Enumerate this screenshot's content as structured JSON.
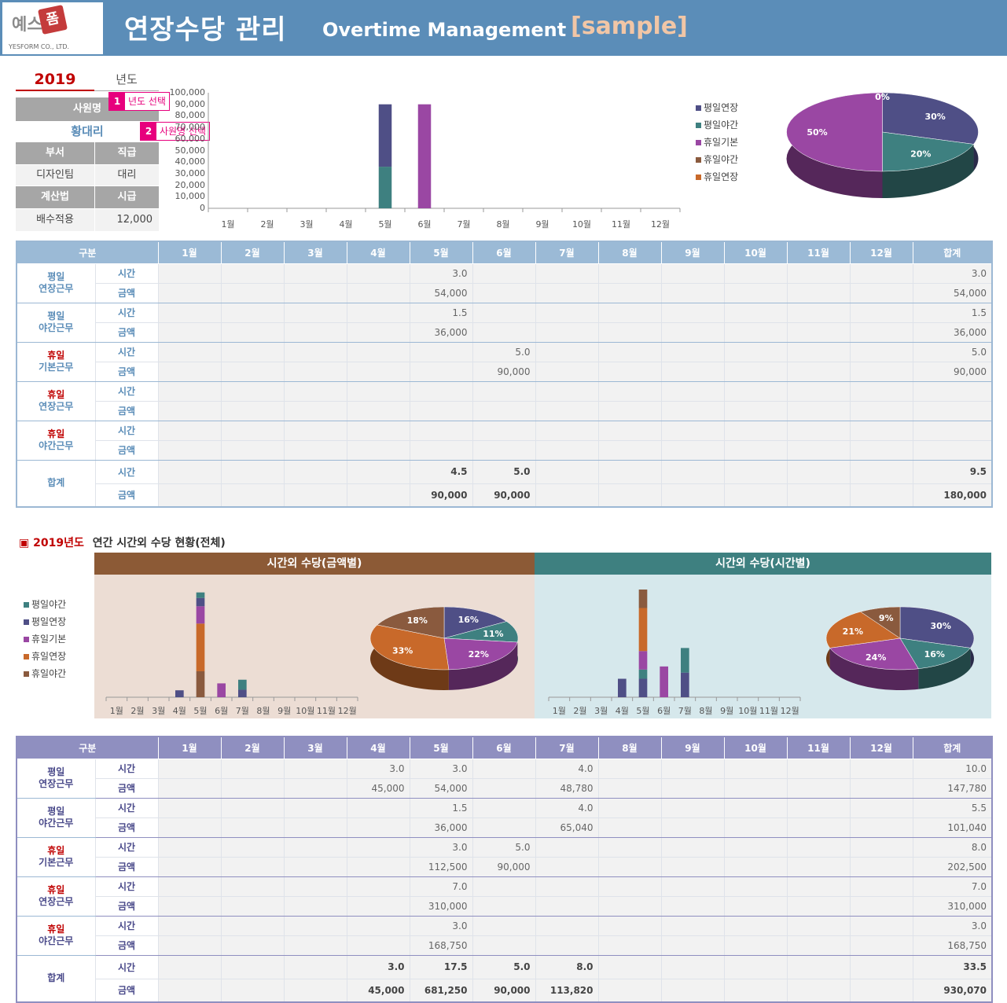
{
  "header": {
    "logo_text": "예스",
    "logo_badge": "폼",
    "logo_sub": "YESFORM CO., LTD.",
    "title_ko": "연장수당 관리",
    "title_en": "Overtime Management",
    "title_sample": "[sample]"
  },
  "info": {
    "year": "2019",
    "year_label": "년도",
    "name_label": "사원명",
    "name": "황대리",
    "dept_label": "부서",
    "position_label": "직급",
    "dept": "디자인팀",
    "position": "대리",
    "calc_label": "계산법",
    "wage_label": "시급",
    "calc": "배수적용",
    "wage": "12,000"
  },
  "tips": [
    {
      "num": "1",
      "text": "년도 선택"
    },
    {
      "num": "2",
      "text": "사원명 선택"
    }
  ],
  "months": [
    "1월",
    "2월",
    "3월",
    "4월",
    "5월",
    "6월",
    "7월",
    "8월",
    "9월",
    "10월",
    "11월",
    "12월"
  ],
  "table1": {
    "h_cat": "구분",
    "h_total": "합계",
    "time_label": "시간",
    "amount_label": "금액",
    "rows": [
      {
        "l1": "평일",
        "l2": "연장근무",
        "hol": false,
        "time": [
          "",
          "",
          "",
          "",
          "3.0",
          "",
          "",
          "",
          "",
          "",
          "",
          ""
        ],
        "time_total": "3.0",
        "amount": [
          "",
          "",
          "",
          "",
          "54,000",
          "",
          "",
          "",
          "",
          "",
          "",
          ""
        ],
        "amount_total": "54,000"
      },
      {
        "l1": "평일",
        "l2": "야간근무",
        "hol": false,
        "time": [
          "",
          "",
          "",
          "",
          "1.5",
          "",
          "",
          "",
          "",
          "",
          "",
          ""
        ],
        "time_total": "1.5",
        "amount": [
          "",
          "",
          "",
          "",
          "36,000",
          "",
          "",
          "",
          "",
          "",
          "",
          ""
        ],
        "amount_total": "36,000"
      },
      {
        "l1": "휴일",
        "l2": "기본근무",
        "hol": true,
        "time": [
          "",
          "",
          "",
          "",
          "",
          "5.0",
          "",
          "",
          "",
          "",
          "",
          ""
        ],
        "time_total": "5.0",
        "amount": [
          "",
          "",
          "",
          "",
          "",
          "90,000",
          "",
          "",
          "",
          "",
          "",
          ""
        ],
        "amount_total": "90,000"
      },
      {
        "l1": "휴일",
        "l2": "연장근무",
        "hol": true,
        "time": [
          "",
          "",
          "",
          "",
          "",
          "",
          "",
          "",
          "",
          "",
          "",
          ""
        ],
        "time_total": "",
        "amount": [
          "",
          "",
          "",
          "",
          "",
          "",
          "",
          "",
          "",
          "",
          "",
          ""
        ],
        "amount_total": ""
      },
      {
        "l1": "휴일",
        "l2": "야간근무",
        "hol": true,
        "time": [
          "",
          "",
          "",
          "",
          "",
          "",
          "",
          "",
          "",
          "",
          "",
          ""
        ],
        "time_total": "",
        "amount": [
          "",
          "",
          "",
          "",
          "",
          "",
          "",
          "",
          "",
          "",
          "",
          ""
        ],
        "amount_total": ""
      }
    ],
    "sum": {
      "label": "합계",
      "time": [
        "",
        "",
        "",
        "",
        "4.5",
        "5.0",
        "",
        "",
        "",
        "",
        "",
        ""
      ],
      "time_total": "9.5",
      "amount": [
        "",
        "",
        "",
        "",
        "90,000",
        "90,000",
        "",
        "",
        "",
        "",
        "",
        ""
      ],
      "amount_total": "180,000"
    }
  },
  "section2": {
    "marker": "▣",
    "title_year": "2019년도",
    "title": "연간 시간외 수당 현황(전체)",
    "panel1": "시간외 수당(금액별)",
    "panel2": "시간외 수당(시간별)"
  },
  "table2": {
    "h_cat": "구분",
    "h_total": "합계",
    "time_label": "시간",
    "amount_label": "금액",
    "rows": [
      {
        "l1": "평일",
        "l2": "연장근무",
        "hol": false,
        "time": [
          "",
          "",
          "",
          "3.0",
          "3.0",
          "",
          "4.0",
          "",
          "",
          "",
          "",
          ""
        ],
        "time_total": "10.0",
        "amount": [
          "",
          "",
          "",
          "45,000",
          "54,000",
          "",
          "48,780",
          "",
          "",
          "",
          "",
          ""
        ],
        "amount_total": "147,780"
      },
      {
        "l1": "평일",
        "l2": "야간근무",
        "hol": false,
        "time": [
          "",
          "",
          "",
          "",
          "1.5",
          "",
          "4.0",
          "",
          "",
          "",
          "",
          ""
        ],
        "time_total": "5.5",
        "amount": [
          "",
          "",
          "",
          "",
          "36,000",
          "",
          "65,040",
          "",
          "",
          "",
          "",
          ""
        ],
        "amount_total": "101,040"
      },
      {
        "l1": "휴일",
        "l2": "기본근무",
        "hol": true,
        "time": [
          "",
          "",
          "",
          "",
          "3.0",
          "5.0",
          "",
          "",
          "",
          "",
          "",
          ""
        ],
        "time_total": "8.0",
        "amount": [
          "",
          "",
          "",
          "",
          "112,500",
          "90,000",
          "",
          "",
          "",
          "",
          "",
          ""
        ],
        "amount_total": "202,500"
      },
      {
        "l1": "휴일",
        "l2": "연장근무",
        "hol": true,
        "time": [
          "",
          "",
          "",
          "",
          "7.0",
          "",
          "",
          "",
          "",
          "",
          "",
          ""
        ],
        "time_total": "7.0",
        "amount": [
          "",
          "",
          "",
          "",
          "310,000",
          "",
          "",
          "",
          "",
          "",
          "",
          ""
        ],
        "amount_total": "310,000"
      },
      {
        "l1": "휴일",
        "l2": "야간근무",
        "hol": true,
        "time": [
          "",
          "",
          "",
          "",
          "3.0",
          "",
          "",
          "",
          "",
          "",
          "",
          ""
        ],
        "time_total": "3.0",
        "amount": [
          "",
          "",
          "",
          "",
          "168,750",
          "",
          "",
          "",
          "",
          "",
          "",
          ""
        ],
        "amount_total": "168,750"
      }
    ],
    "sum": {
      "label": "합계",
      "time": [
        "",
        "",
        "",
        "3.0",
        "17.5",
        "5.0",
        "8.0",
        "",
        "",
        "",
        "",
        ""
      ],
      "time_total": "33.5",
      "amount": [
        "",
        "",
        "",
        "45,000",
        "681,250",
        "90,000",
        "113,820",
        "",
        "",
        "",
        "",
        ""
      ],
      "amount_total": "930,070"
    }
  },
  "colors": {
    "pw_ext": "#4f4f86",
    "pw_night": "#3e8080",
    "hol_base": "#9a47a3",
    "hol_night": "#8a5a3e",
    "hol_ext": "#c8692a"
  },
  "chart_data": [
    {
      "id": "top-bar",
      "type": "bar",
      "stacked": true,
      "title": "",
      "categories": [
        "1월",
        "2월",
        "3월",
        "4월",
        "5월",
        "6월",
        "7월",
        "8월",
        "9월",
        "10월",
        "11월",
        "12월"
      ],
      "ylim": [
        0,
        100000
      ],
      "yticks": [
        "0",
        "10,000",
        "20,000",
        "30,000",
        "40,000",
        "50,000",
        "60,000",
        "70,000",
        "80,000",
        "90,000",
        "100,000"
      ],
      "series": [
        {
          "name": "평일야간",
          "key": "pw_night",
          "values": [
            0,
            0,
            0,
            0,
            36000,
            0,
            0,
            0,
            0,
            0,
            0,
            0
          ]
        },
        {
          "name": "평일연장",
          "key": "pw_ext",
          "values": [
            0,
            0,
            0,
            0,
            54000,
            0,
            0,
            0,
            0,
            0,
            0,
            0
          ]
        },
        {
          "name": "휴일기본",
          "key": "hol_base",
          "values": [
            0,
            0,
            0,
            0,
            0,
            90000,
            0,
            0,
            0,
            0,
            0,
            0
          ]
        },
        {
          "name": "휴일야간",
          "key": "hol_night",
          "values": [
            0,
            0,
            0,
            0,
            0,
            0,
            0,
            0,
            0,
            0,
            0,
            0
          ]
        },
        {
          "name": "휴일연장",
          "key": "hol_ext",
          "values": [
            0,
            0,
            0,
            0,
            0,
            0,
            0,
            0,
            0,
            0,
            0,
            0
          ]
        }
      ],
      "legend": [
        {
          "name": "평일연장",
          "key": "pw_ext"
        },
        {
          "name": "평일야간",
          "key": "pw_night"
        },
        {
          "name": "휴일기본",
          "key": "hol_base"
        },
        {
          "name": "휴일야간",
          "key": "hol_night"
        },
        {
          "name": "휴일연장",
          "key": "hol_ext"
        }
      ]
    },
    {
      "id": "top-pie",
      "type": "pie",
      "slices": [
        {
          "name": "평일연장",
          "key": "pw_ext",
          "value": 30,
          "label": "30%"
        },
        {
          "name": "평일야간",
          "key": "pw_night",
          "value": 20,
          "label": "20%"
        },
        {
          "name": "휴일기본",
          "key": "hol_base",
          "value": 50,
          "label": "50%"
        },
        {
          "name": "휴일야간",
          "key": "hol_night",
          "value": 0,
          "label": "0%"
        },
        {
          "name": "휴일연장",
          "key": "hol_ext",
          "value": 0,
          "label": "0%"
        }
      ]
    },
    {
      "id": "amount-bar",
      "type": "bar",
      "stacked": true,
      "categories": [
        "1월",
        "2월",
        "3월",
        "4월",
        "5월",
        "6월",
        "7월",
        "8월",
        "9월",
        "10월",
        "11월",
        "12월"
      ],
      "ylim": [
        0,
        700000
      ],
      "series": [
        {
          "name": "휴일야간",
          "key": "hol_night",
          "values": [
            0,
            0,
            0,
            0,
            168750,
            0,
            0,
            0,
            0,
            0,
            0,
            0
          ]
        },
        {
          "name": "휴일연장",
          "key": "hol_ext",
          "values": [
            0,
            0,
            0,
            0,
            310000,
            0,
            0,
            0,
            0,
            0,
            0,
            0
          ]
        },
        {
          "name": "휴일기본",
          "key": "hol_base",
          "values": [
            0,
            0,
            0,
            0,
            112500,
            90000,
            0,
            0,
            0,
            0,
            0,
            0
          ]
        },
        {
          "name": "평일연장",
          "key": "pw_ext",
          "values": [
            0,
            0,
            0,
            45000,
            54000,
            0,
            48780,
            0,
            0,
            0,
            0,
            0
          ]
        },
        {
          "name": "평일야간",
          "key": "pw_night",
          "values": [
            0,
            0,
            0,
            0,
            36000,
            0,
            65040,
            0,
            0,
            0,
            0,
            0
          ]
        }
      ],
      "legend": [
        {
          "name": "평일야간",
          "key": "pw_night"
        },
        {
          "name": "평일연장",
          "key": "pw_ext"
        },
        {
          "name": "휴일기본",
          "key": "hol_base"
        },
        {
          "name": "휴일연장",
          "key": "hol_ext"
        },
        {
          "name": "휴일야간",
          "key": "hol_night"
        }
      ]
    },
    {
      "id": "amount-pie",
      "type": "pie",
      "slices": [
        {
          "name": "평일연장",
          "key": "pw_ext",
          "value": 16,
          "label": "16%"
        },
        {
          "name": "평일야간",
          "key": "pw_night",
          "value": 11,
          "label": "11%"
        },
        {
          "name": "휴일기본",
          "key": "hol_base",
          "value": 22,
          "label": "22%"
        },
        {
          "name": "휴일연장",
          "key": "hol_ext",
          "value": 33,
          "label": "33%"
        },
        {
          "name": "휴일야간",
          "key": "hol_night",
          "value": 18,
          "label": "18%"
        }
      ]
    },
    {
      "id": "time-bar",
      "type": "bar",
      "stacked": true,
      "categories": [
        "1월",
        "2월",
        "3월",
        "4월",
        "5월",
        "6월",
        "7월",
        "8월",
        "9월",
        "10월",
        "11월",
        "12월"
      ],
      "ylim": [
        0,
        17.5
      ],
      "series": [
        {
          "name": "평일연장",
          "key": "pw_ext",
          "values": [
            0,
            0,
            0,
            3,
            3,
            0,
            4,
            0,
            0,
            0,
            0,
            0
          ]
        },
        {
          "name": "평일야간",
          "key": "pw_night",
          "values": [
            0,
            0,
            0,
            0,
            1.5,
            0,
            4,
            0,
            0,
            0,
            0,
            0
          ]
        },
        {
          "name": "휴일기본",
          "key": "hol_base",
          "values": [
            0,
            0,
            0,
            0,
            3,
            5,
            0,
            0,
            0,
            0,
            0,
            0
          ]
        },
        {
          "name": "휴일연장",
          "key": "hol_ext",
          "values": [
            0,
            0,
            0,
            0,
            7,
            0,
            0,
            0,
            0,
            0,
            0,
            0
          ]
        },
        {
          "name": "휴일야간",
          "key": "hol_night",
          "values": [
            0,
            0,
            0,
            0,
            3,
            0,
            0,
            0,
            0,
            0,
            0,
            0
          ]
        }
      ]
    },
    {
      "id": "time-pie",
      "type": "pie",
      "slices": [
        {
          "name": "평일연장",
          "key": "pw_ext",
          "value": 30,
          "label": "30%"
        },
        {
          "name": "평일야간",
          "key": "pw_night",
          "value": 16,
          "label": "16%"
        },
        {
          "name": "휴일기본",
          "key": "hol_base",
          "value": 24,
          "label": "24%"
        },
        {
          "name": "휴일연장",
          "key": "hol_ext",
          "value": 21,
          "label": "21%"
        },
        {
          "name": "휴일야간",
          "key": "hol_night",
          "value": 9,
          "label": "9%"
        }
      ]
    }
  ]
}
